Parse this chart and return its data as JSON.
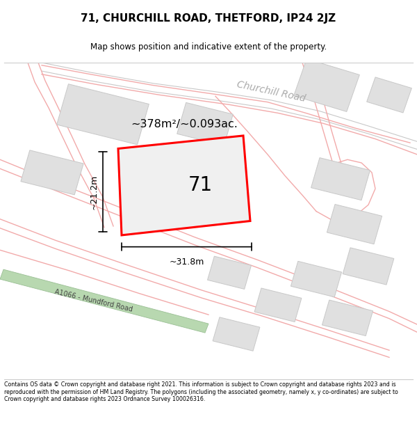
{
  "title": "71, CHURCHILL ROAD, THETFORD, IP24 2JZ",
  "subtitle": "Map shows position and indicative extent of the property.",
  "footer": "Contains OS data © Crown copyright and database right 2021. This information is subject to Crown copyright and database rights 2023 and is reproduced with the permission of HM Land Registry. The polygons (including the associated geometry, namely x, y co-ordinates) are subject to Crown copyright and database rights 2023 Ordnance Survey 100026316.",
  "map_bg": "#ffffff",
  "road_color_pink": "#f2aaaa",
  "building_color": "#e0e0e0",
  "building_edge": "#c8c8c8",
  "property_color": "#f0f0f0",
  "property_edge": "#ff0000",
  "area_text": "~378m²/~0.093ac.",
  "property_label": "71",
  "dim_width": "~31.8m",
  "dim_height": "~21.2m",
  "road1_label": "Churchill Road",
  "road2_label": "A1066 - Mundford Road",
  "road_label_color": "#aaaaaa",
  "green_road_color": "#b8d8b0",
  "green_road_edge": "#9abf94"
}
